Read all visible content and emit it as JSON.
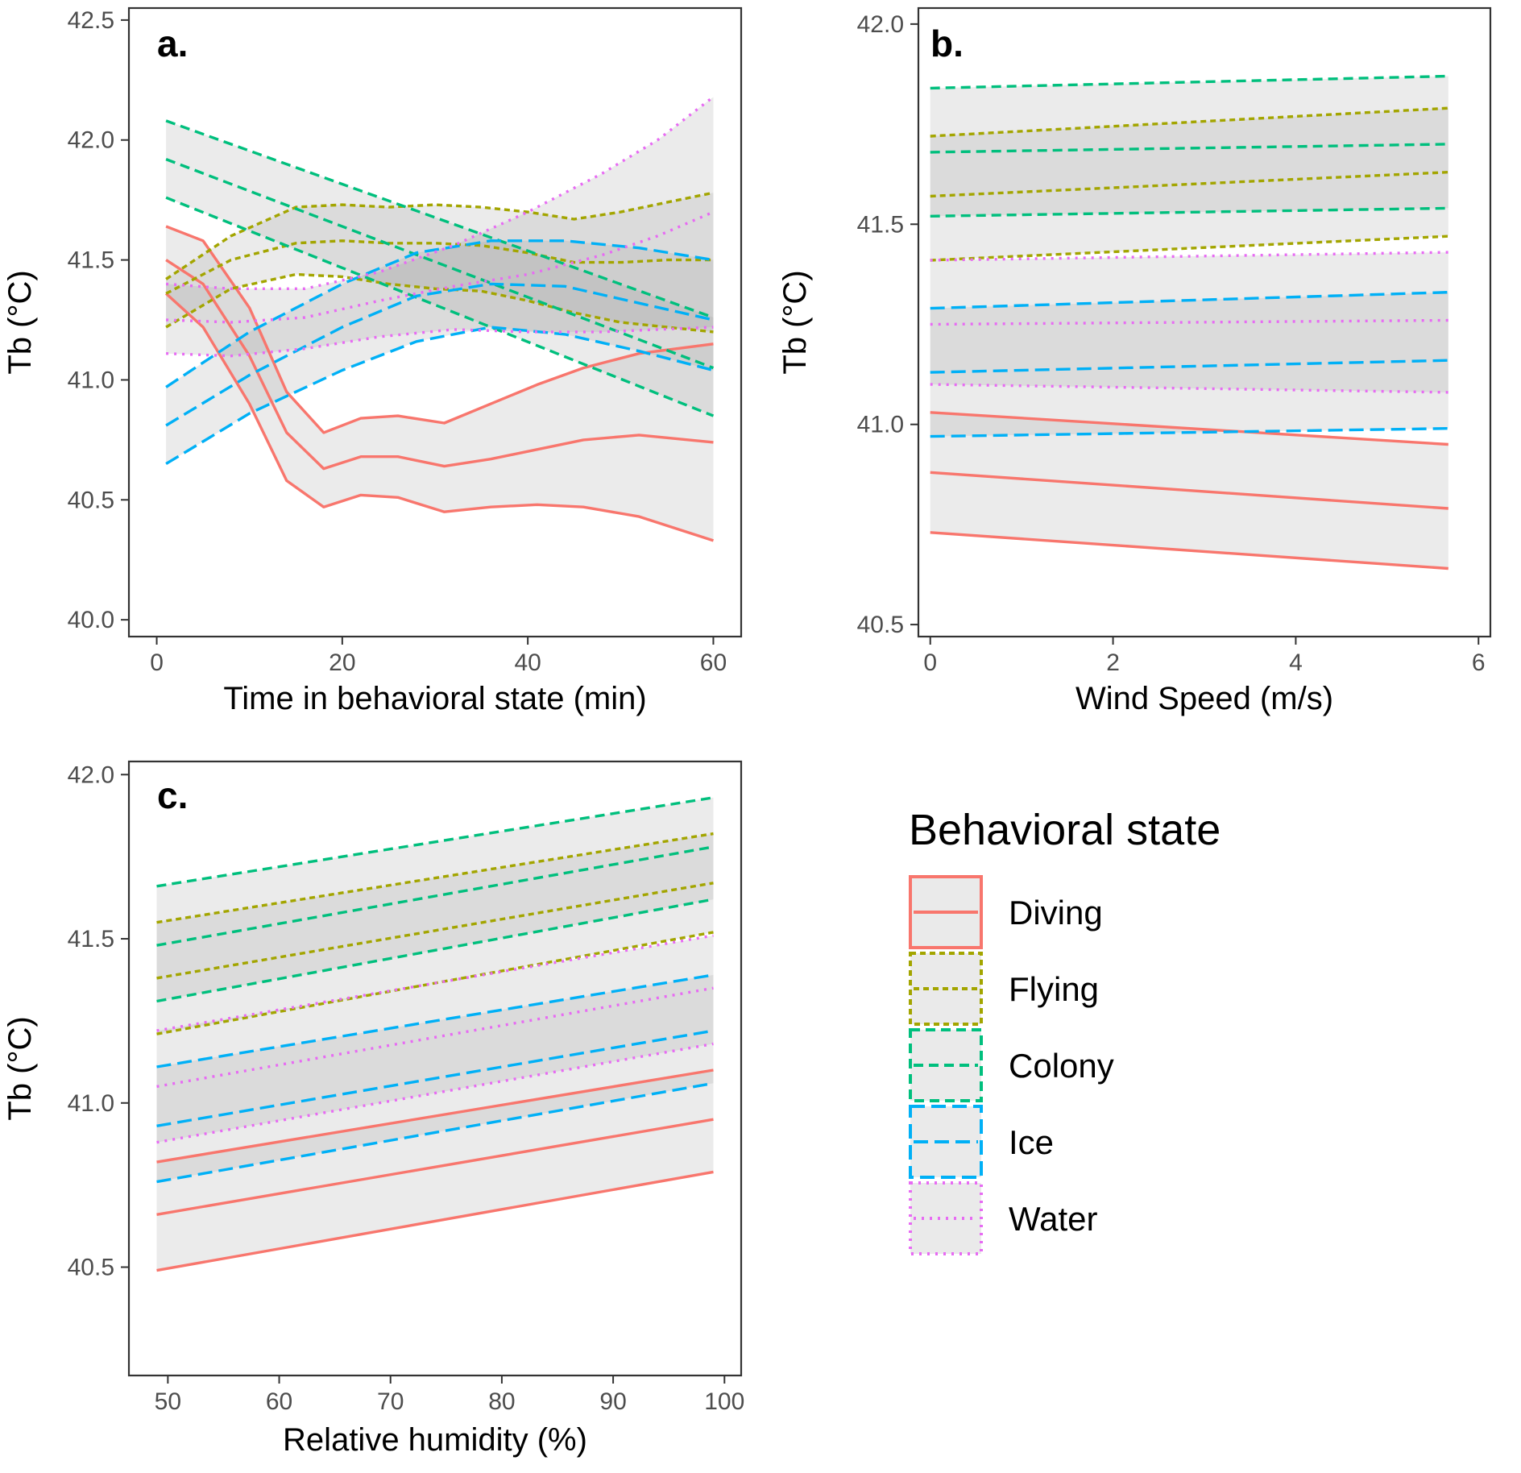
{
  "chart_data": [
    {
      "type": "line",
      "panel": "a.",
      "xlabel": "Time in behavioral state (min)",
      "ylabel": "Tb (°C)",
      "xlim": [
        -3,
        63
      ],
      "ylim": [
        39.93,
        42.55
      ],
      "xticks": [
        "0",
        "20",
        "40",
        "60"
      ],
      "yticks": [
        "40.0",
        "40.5",
        "41.0",
        "41.5",
        "42.0",
        "42.5"
      ],
      "series": [
        {
          "name": "Diving",
          "x": [
            1,
            5,
            10,
            14,
            18,
            22,
            26,
            31,
            36,
            41,
            46,
            52,
            60
          ],
          "upper": [
            41.64,
            41.58,
            41.3,
            40.95,
            40.78,
            40.84,
            40.85,
            40.82,
            40.9,
            40.98,
            41.05,
            41.11,
            41.15
          ],
          "mid": [
            41.5,
            41.4,
            41.1,
            40.78,
            40.63,
            40.68,
            40.68,
            40.64,
            40.67,
            40.71,
            40.75,
            40.77,
            40.74
          ],
          "lower": [
            41.36,
            41.22,
            40.9,
            40.58,
            40.47,
            40.52,
            40.51,
            40.45,
            40.47,
            40.48,
            40.47,
            40.43,
            40.33
          ]
        },
        {
          "name": "Flying",
          "x": [
            1,
            8,
            15,
            20,
            25,
            30,
            35,
            40,
            45,
            50,
            55,
            60
          ],
          "upper": [
            41.42,
            41.6,
            41.72,
            41.73,
            41.72,
            41.73,
            41.72,
            41.7,
            41.67,
            41.7,
            41.74,
            41.78
          ],
          "mid": [
            41.36,
            41.5,
            41.57,
            41.58,
            41.57,
            41.57,
            41.56,
            41.53,
            41.49,
            41.49,
            41.5,
            41.5
          ],
          "lower": [
            41.22,
            41.38,
            41.44,
            41.43,
            41.4,
            41.38,
            41.37,
            41.33,
            41.28,
            41.24,
            41.22,
            41.2
          ]
        },
        {
          "name": "Colony",
          "x": [
            1,
            60
          ],
          "upper": [
            42.08,
            41.26
          ],
          "mid": [
            41.92,
            41.05
          ],
          "lower": [
            41.76,
            40.85
          ]
        },
        {
          "name": "Ice",
          "x": [
            1,
            10,
            20,
            28,
            36,
            44,
            52,
            60
          ],
          "upper": [
            40.97,
            41.2,
            41.4,
            41.53,
            41.58,
            41.58,
            41.55,
            41.5
          ],
          "mid": [
            40.81,
            41.02,
            41.22,
            41.35,
            41.4,
            41.39,
            41.32,
            41.25
          ],
          "lower": [
            40.65,
            40.86,
            41.04,
            41.16,
            41.22,
            41.19,
            41.12,
            41.04
          ]
        },
        {
          "name": "Water",
          "x": [
            1,
            8,
            16,
            24,
            32,
            40,
            48,
            54,
            60
          ],
          "upper": [
            41.4,
            41.38,
            41.38,
            41.45,
            41.56,
            41.7,
            41.86,
            42.0,
            42.18
          ],
          "mid": [
            41.25,
            41.24,
            41.26,
            41.33,
            41.39,
            41.44,
            41.52,
            41.6,
            41.7
          ],
          "lower": [
            41.11,
            41.1,
            41.13,
            41.18,
            41.21,
            41.2,
            41.2,
            41.21,
            41.22
          ]
        }
      ]
    },
    {
      "type": "line",
      "panel": "b.",
      "xlabel": "Wind Speed (m/s)",
      "ylabel": "Tb (°C)",
      "xlim": [
        -0.13,
        6.13
      ],
      "ylim": [
        40.47,
        42.04
      ],
      "xticks": [
        "0",
        "2",
        "4",
        "6"
      ],
      "yticks": [
        "40.5",
        "41.0",
        "41.5",
        "42.0"
      ],
      "series": [
        {
          "name": "Diving",
          "x": [
            0,
            5.67
          ],
          "upper": [
            41.03,
            40.95
          ],
          "mid": [
            40.88,
            40.79
          ],
          "lower": [
            40.73,
            40.64
          ]
        },
        {
          "name": "Flying",
          "x": [
            0,
            5.67
          ],
          "upper": [
            41.72,
            41.79
          ],
          "mid": [
            41.57,
            41.63
          ],
          "lower": [
            41.41,
            41.47
          ]
        },
        {
          "name": "Colony",
          "x": [
            0,
            5.67
          ],
          "upper": [
            41.84,
            41.87
          ],
          "mid": [
            41.68,
            41.7
          ],
          "lower": [
            41.52,
            41.54
          ]
        },
        {
          "name": "Ice",
          "x": [
            0,
            5.67
          ],
          "upper": [
            41.29,
            41.33
          ],
          "mid": [
            41.13,
            41.16
          ],
          "lower": [
            40.97,
            40.99
          ]
        },
        {
          "name": "Water",
          "x": [
            0,
            5.67
          ],
          "upper": [
            41.41,
            41.43
          ],
          "mid": [
            41.25,
            41.26
          ],
          "lower": [
            41.1,
            41.08
          ]
        }
      ]
    },
    {
      "type": "line",
      "panel": "c.",
      "xlabel": "Relative humidity (%)",
      "ylabel": "Tb (°C)",
      "xlim": [
        46.5,
        101.5
      ],
      "ylim": [
        40.17,
        42.04
      ],
      "xticks": [
        "50",
        "60",
        "70",
        "80",
        "90",
        "100"
      ],
      "yticks": [
        "40.5",
        "41.0",
        "41.5",
        "42.0"
      ],
      "series": [
        {
          "name": "Diving",
          "x": [
            49,
            99
          ],
          "upper": [
            40.82,
            41.1
          ],
          "mid": [
            40.66,
            40.95
          ],
          "lower": [
            40.49,
            40.79
          ]
        },
        {
          "name": "Flying",
          "x": [
            49,
            99
          ],
          "upper": [
            41.55,
            41.82
          ],
          "mid": [
            41.38,
            41.67
          ],
          "lower": [
            41.21,
            41.52
          ]
        },
        {
          "name": "Colony",
          "x": [
            49,
            99
          ],
          "upper": [
            41.66,
            41.93
          ],
          "mid": [
            41.48,
            41.78
          ],
          "lower": [
            41.31,
            41.62
          ]
        },
        {
          "name": "Ice",
          "x": [
            49,
            99
          ],
          "upper": [
            41.11,
            41.39
          ],
          "mid": [
            40.93,
            41.22
          ],
          "lower": [
            40.76,
            41.06
          ]
        },
        {
          "name": "Water",
          "x": [
            49,
            99
          ],
          "upper": [
            41.22,
            41.51
          ],
          "mid": [
            41.05,
            41.35
          ],
          "lower": [
            40.88,
            41.18
          ]
        }
      ]
    }
  ],
  "legend": {
    "title": "Behavioral state",
    "items": [
      {
        "label": "Diving",
        "color": "#F8766D",
        "dash": "solid"
      },
      {
        "label": "Flying",
        "color": "#A3A500",
        "dash": "dotted"
      },
      {
        "label": "Colony",
        "color": "#00BF7D",
        "dash": "dashed"
      },
      {
        "label": "Ice",
        "color": "#00B0F6",
        "dash": "longdash"
      },
      {
        "label": "Water",
        "color": "#E76BF3",
        "dash": "dots"
      }
    ]
  }
}
